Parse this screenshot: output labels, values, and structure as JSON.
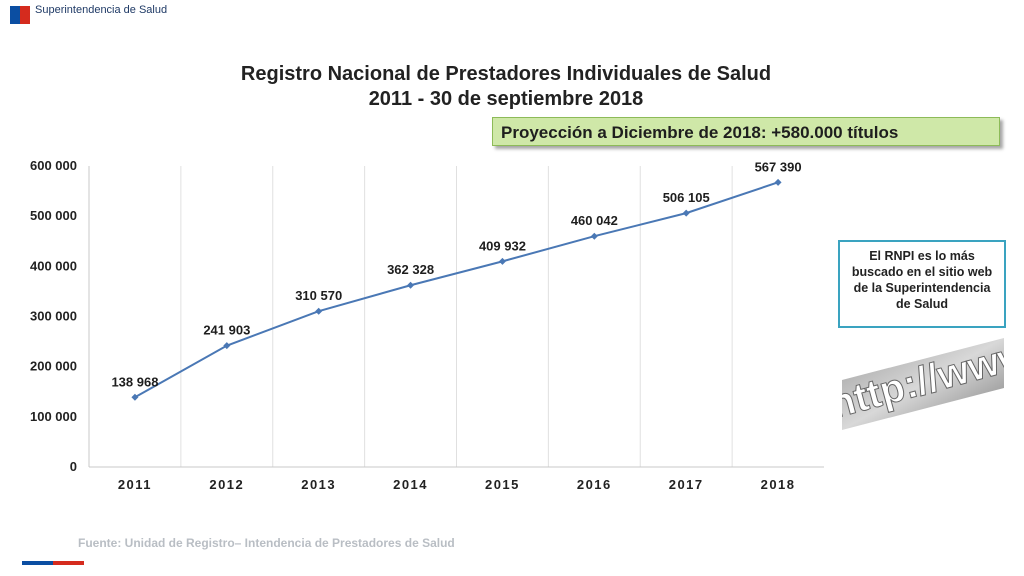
{
  "header": {
    "org_name": "Superintendencia de Salud",
    "flag_colors": [
      "#0b4ea2",
      "#d52b1e"
    ]
  },
  "title": {
    "line1": "Registro Nacional de Prestadores Individuales de Salud",
    "line2": "2011 - 30 de septiembre 2018"
  },
  "projection": {
    "text": "Proyección a Diciembre de 2018: +580.000 títulos",
    "background": "#cfe8a8"
  },
  "info_box": {
    "text": "El RNPI es lo más buscado en el sitio web de la Superintendencia de Salud",
    "border_color": "#3aa3c0"
  },
  "banner": {
    "text": "http://www"
  },
  "source": {
    "text": "Fuente: Unidad de Registro– Intendencia de Prestadores de Salud"
  },
  "chart_data": {
    "type": "line",
    "categories": [
      "2011",
      "2012",
      "2013",
      "2014",
      "2015",
      "2016",
      "2017",
      "2018"
    ],
    "series": [
      {
        "values": [
          138968,
          241903,
          310570,
          362328,
          409932,
          460042,
          506105,
          567390
        ],
        "data_labels": [
          "138 968",
          "241 903",
          "310 570",
          "362 328",
          "409 932",
          "460 042",
          "506 105",
          "567 390"
        ],
        "color": "#4a78b5"
      }
    ],
    "yticks": [
      0,
      100000,
      200000,
      300000,
      400000,
      500000,
      600000
    ],
    "ytick_labels": [
      "0",
      "100 000",
      "200 000",
      "300 000",
      "400 000",
      "500 000",
      "600 000"
    ],
    "ylim": [
      0,
      600000
    ],
    "grid": "vertical",
    "legend": "none"
  }
}
